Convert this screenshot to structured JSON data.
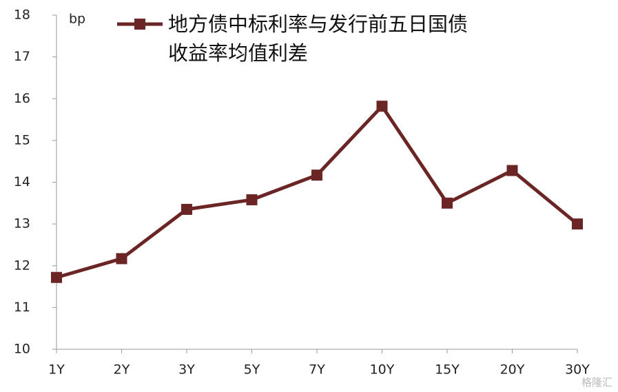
{
  "chart_data": {
    "type": "line",
    "y_unit": "bp",
    "categories": [
      "1Y",
      "2Y",
      "3Y",
      "5Y",
      "7Y",
      "10Y",
      "15Y",
      "20Y",
      "30Y"
    ],
    "series": [
      {
        "name": "地方债中标利率与发行前五日国债收益率均值利差",
        "color": "#6b2525",
        "values": [
          11.72,
          12.17,
          13.35,
          13.58,
          14.17,
          15.82,
          13.5,
          14.28,
          13.0
        ]
      }
    ],
    "ylim": [
      10,
      18
    ],
    "yticks": [
      10,
      11,
      12,
      13,
      14,
      15,
      16,
      17,
      18
    ],
    "grid": false,
    "watermark": "格隆汇"
  }
}
